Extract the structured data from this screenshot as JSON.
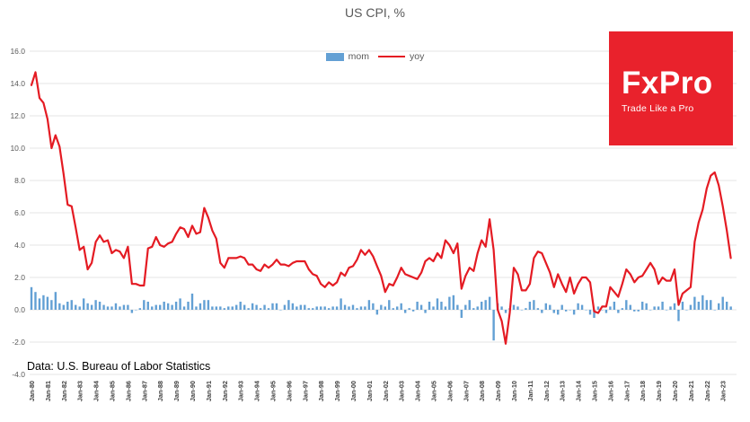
{
  "title": "US CPI, %",
  "legend": {
    "mom_label": "mom",
    "yoy_label": "yoy"
  },
  "source": "Data: U.S. Bureau of Labor Statistics",
  "logo": {
    "name": "FxPro",
    "tagline": "Trade Like a Pro",
    "bg_color": "#e9222c"
  },
  "colors": {
    "mom_bar": "#63a0d4",
    "yoy_line": "#e41b23",
    "grid": "#e4e4e4",
    "axis_text": "#595959",
    "tick_text": "#404040"
  },
  "chart_data": {
    "type": "combo",
    "title": "US CPI, %",
    "xlabel": "",
    "ylabel": "",
    "ylim": [
      -4,
      16
    ],
    "grid": true,
    "legend_position": "top-center",
    "x_start_year": 1980,
    "points_per_year": 4,
    "y_ticks": [
      16,
      14,
      12,
      10,
      8,
      6,
      4,
      2,
      0,
      -2,
      -4
    ],
    "x_tick_labels": [
      "Jan-80",
      "Jan-81",
      "Jan-82",
      "Jan-83",
      "Jan-84",
      "Jan-85",
      "Jan-86",
      "Jan-87",
      "Jan-88",
      "Jan-89",
      "Jan-90",
      "Jan-91",
      "Jan-92",
      "Jan-93",
      "Jan-94",
      "Jan-95",
      "Jan-96",
      "Jan-97",
      "Jan-98",
      "Jan-99",
      "Jan-00",
      "Jan-01",
      "Jan-02",
      "Jan-03",
      "Jan-04",
      "Jan-05",
      "Jan-06",
      "Jan-07",
      "Jan-08",
      "Jan-09",
      "Jan-10",
      "Jan-11",
      "Jan-12",
      "Jan-13",
      "Jan-14",
      "Jan-15",
      "Jan-16",
      "Jan-17",
      "Jan-18",
      "Jan-19",
      "Jan-20",
      "Jan-21",
      "Jan-22",
      "Jan-23"
    ],
    "series": [
      {
        "name": "mom",
        "type": "bar",
        "values": [
          1.4,
          1.1,
          0.7,
          0.9,
          0.8,
          0.6,
          1.1,
          0.4,
          0.3,
          0.5,
          0.6,
          0.3,
          0.2,
          0.7,
          0.4,
          0.3,
          0.6,
          0.5,
          0.3,
          0.2,
          0.2,
          0.4,
          0.2,
          0.3,
          0.3,
          -0.2,
          0.0,
          0.1,
          0.6,
          0.5,
          0.2,
          0.3,
          0.3,
          0.5,
          0.4,
          0.3,
          0.5,
          0.7,
          0.2,
          0.5,
          1.0,
          0.2,
          0.4,
          0.6,
          0.6,
          0.2,
          0.2,
          0.2,
          0.1,
          0.2,
          0.2,
          0.3,
          0.5,
          0.3,
          0.1,
          0.4,
          0.3,
          0.1,
          0.3,
          0.1,
          0.4,
          0.4,
          0.0,
          0.3,
          0.6,
          0.4,
          0.2,
          0.3,
          0.3,
          0.1,
          0.1,
          0.2,
          0.2,
          0.2,
          0.1,
          0.2,
          0.2,
          0.7,
          0.3,
          0.2,
          0.3,
          0.1,
          0.2,
          0.2,
          0.6,
          0.4,
          -0.3,
          0.3,
          0.2,
          0.6,
          0.1,
          0.2,
          0.4,
          -0.2,
          0.1,
          -0.1,
          0.5,
          0.3,
          -0.2,
          0.5,
          0.2,
          0.7,
          0.5,
          0.2,
          0.8,
          0.9,
          0.3,
          -0.5,
          0.3,
          0.6,
          0.1,
          0.2,
          0.5,
          0.6,
          0.8,
          -1.9,
          0.4,
          0.2,
          -0.2,
          0.1,
          0.3,
          0.2,
          0.0,
          0.1,
          0.5,
          0.6,
          0.1,
          -0.2,
          0.4,
          0.3,
          -0.2,
          -0.3,
          0.3,
          -0.1,
          0.0,
          -0.3,
          0.4,
          0.3,
          0.0,
          -0.3,
          -0.5,
          0.2,
          0.0,
          -0.2,
          0.2,
          0.5,
          -0.2,
          0.1,
          0.6,
          0.3,
          -0.1,
          -0.1,
          0.5,
          0.4,
          0.0,
          0.2,
          0.2,
          0.5,
          0.0,
          0.2,
          0.4,
          -0.7,
          0.5,
          0.0,
          0.3,
          0.8,
          0.5,
          0.9,
          0.6,
          0.6,
          0.0,
          0.4,
          0.8,
          0.5,
          0.2
        ]
      },
      {
        "name": "yoy",
        "type": "line",
        "values": [
          13.9,
          14.7,
          13.1,
          12.8,
          11.8,
          10.0,
          10.8,
          10.1,
          8.4,
          6.5,
          6.4,
          5.1,
          3.7,
          3.9,
          2.5,
          2.9,
          4.2,
          4.6,
          4.2,
          4.3,
          3.5,
          3.7,
          3.6,
          3.2,
          3.9,
          1.6,
          1.6,
          1.5,
          1.5,
          3.8,
          3.9,
          4.5,
          4.0,
          3.9,
          4.1,
          4.2,
          4.7,
          5.1,
          5.0,
          4.5,
          5.2,
          4.7,
          4.8,
          6.3,
          5.7,
          4.9,
          4.4,
          2.9,
          2.6,
          3.2,
          3.2,
          3.2,
          3.3,
          3.2,
          2.8,
          2.8,
          2.5,
          2.4,
          2.8,
          2.6,
          2.8,
          3.1,
          2.8,
          2.8,
          2.7,
          2.9,
          3.0,
          3.0,
          3.0,
          2.5,
          2.2,
          2.1,
          1.6,
          1.4,
          1.7,
          1.5,
          1.7,
          2.3,
          2.1,
          2.6,
          2.7,
          3.1,
          3.7,
          3.4,
          3.7,
          3.3,
          2.7,
          2.1,
          1.1,
          1.6,
          1.5,
          2.0,
          2.6,
          2.2,
          2.1,
          2.0,
          1.9,
          2.3,
          3.0,
          3.2,
          3.0,
          3.5,
          3.2,
          4.3,
          4.0,
          3.5,
          4.1,
          1.3,
          2.1,
          2.6,
          2.4,
          3.5,
          4.3,
          3.9,
          5.6,
          3.7,
          0.0,
          -0.7,
          -2.1,
          -0.2,
          2.6,
          2.2,
          1.2,
          1.2,
          1.6,
          3.2,
          3.6,
          3.5,
          2.9,
          2.3,
          1.4,
          2.2,
          1.6,
          1.1,
          2.0,
          1.0,
          1.6,
          2.0,
          2.0,
          1.7,
          -0.1,
          -0.2,
          0.2,
          0.2,
          1.4,
          1.1,
          0.8,
          1.6,
          2.5,
          2.2,
          1.7,
          2.0,
          2.1,
          2.5,
          2.9,
          2.5,
          1.6,
          2.0,
          1.8,
          1.8,
          2.5,
          0.3,
          1.0,
          1.2,
          1.4,
          4.2,
          5.4,
          6.2,
          7.5,
          8.3,
          8.5,
          7.7,
          6.4,
          4.9,
          3.2
        ]
      }
    ]
  }
}
